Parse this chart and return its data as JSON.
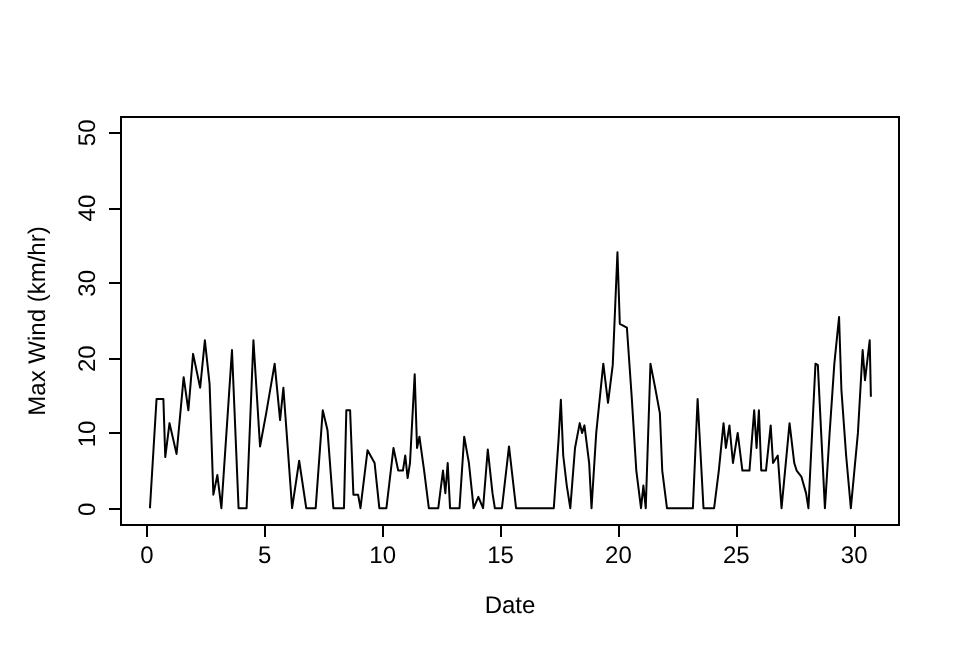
{
  "chart_data": {
    "type": "line",
    "xlabel": "Date",
    "ylabel": "Max Wind (km/hr)",
    "xlim": [
      -1.1,
      31.9
    ],
    "ylim": [
      -2.1,
      52.1
    ],
    "xticks": [
      0,
      5,
      10,
      15,
      20,
      25,
      30
    ],
    "yticks": [
      0,
      10,
      20,
      30,
      40,
      50
    ],
    "grid": false,
    "marker": "none",
    "line_style": "solid",
    "x": [
      0.17,
      0.45,
      0.74,
      0.82,
      1.0,
      1.3,
      1.6,
      1.8,
      2.0,
      2.3,
      2.5,
      2.7,
      2.86,
      3.03,
      3.2,
      3.65,
      3.93,
      4.27,
      4.56,
      4.84,
      5.1,
      5.46,
      5.69,
      5.83,
      6.2,
      6.5,
      6.8,
      7.2,
      7.5,
      7.7,
      7.95,
      8.4,
      8.5,
      8.66,
      8.8,
      9.0,
      9.1,
      9.4,
      9.7,
      9.9,
      10.2,
      10.5,
      10.7,
      10.9,
      11.0,
      11.1,
      11.2,
      11.4,
      11.5,
      11.6,
      11.8,
      12.0,
      12.4,
      12.6,
      12.7,
      12.8,
      12.9,
      13.3,
      13.5,
      13.7,
      13.9,
      14.1,
      14.3,
      14.5,
      14.7,
      14.8,
      15.1,
      15.4,
      15.7,
      17.3,
      17.5,
      17.6,
      17.7,
      17.85,
      18.0,
      18.2,
      18.4,
      18.5,
      18.6,
      18.8,
      18.9,
      19.1,
      19.4,
      19.6,
      19.8,
      20.0,
      20.1,
      20.4,
      20.6,
      20.8,
      21.0,
      21.1,
      21.2,
      21.4,
      21.6,
      21.8,
      21.9,
      22.1,
      23.2,
      23.4,
      23.65,
      24.1,
      24.3,
      24.5,
      24.6,
      24.75,
      24.9,
      25.1,
      25.3,
      25.6,
      25.8,
      25.9,
      26.0,
      26.1,
      26.3,
      26.5,
      26.6,
      26.8,
      26.96,
      27.3,
      27.5,
      27.6,
      27.8,
      28.0,
      28.1,
      28.4,
      28.5,
      28.6,
      28.8,
      29.0,
      29.2,
      29.4,
      29.5,
      29.7,
      29.9,
      30.2,
      30.4,
      30.5,
      30.7,
      30.75
    ],
    "values": [
      0,
      14.5,
      14.5,
      6.8,
      11.3,
      7.2,
      17.4,
      13,
      20.5,
      16,
      22.3,
      16.5,
      1.8,
      4.4,
      0,
      21,
      0,
      0,
      22.3,
      8.2,
      12.6,
      19.2,
      11.7,
      16,
      0,
      6.3,
      0,
      0,
      13,
      10.4,
      0,
      0,
      13,
      13,
      1.8,
      1.8,
      0,
      7.7,
      6,
      0,
      0,
      8,
      5,
      5,
      7,
      4,
      6,
      17.8,
      8,
      9.5,
      5,
      0,
      0,
      5,
      2,
      6,
      0,
      0,
      9.5,
      6,
      0,
      1.5,
      0,
      7.8,
      2,
      0,
      0,
      8.2,
      0,
      0,
      9,
      14.4,
      7,
      3,
      0,
      8,
      11.3,
      10,
      11,
      6,
      0,
      10,
      19.2,
      14,
      19,
      34,
      24.5,
      24,
      15,
      5,
      0,
      3,
      0,
      19.2,
      16,
      12.6,
      5,
      0,
      0,
      14.5,
      0,
      0,
      5,
      11.3,
      8,
      11,
      6,
      10,
      5,
      5,
      13,
      8,
      13,
      5,
      5,
      11,
      6,
      7,
      0,
      11.3,
      6,
      5,
      4.2,
      2,
      0,
      19.2,
      19,
      12.6,
      0,
      10,
      19.2,
      25.4,
      15.7,
      7,
      0,
      10,
      21,
      17,
      22.3,
      14.8
    ],
    "color": "#000000"
  }
}
